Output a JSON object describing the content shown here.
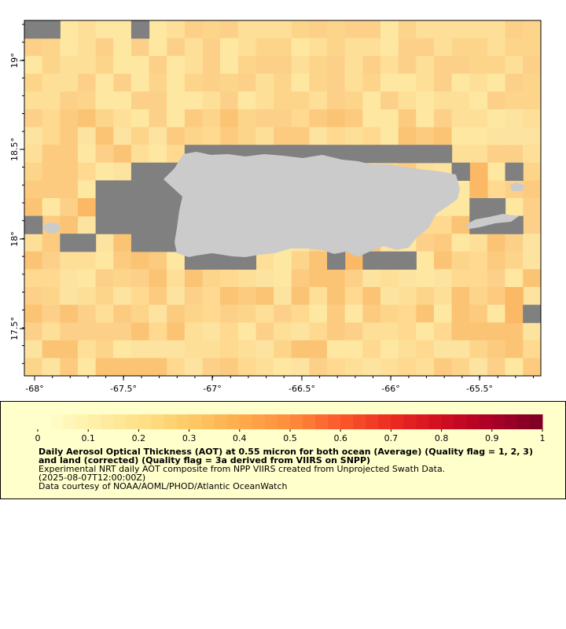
{
  "map": {
    "x_ticks": [
      "-68°",
      "-67.5°",
      "-67°",
      "-66.5°",
      "-66°",
      "-65.5°"
    ],
    "y_ticks": [
      "19°",
      "18.5°",
      "18°",
      "17.5°"
    ],
    "colors": {
      "no_data": "#808080",
      "land": "#cbcbcb",
      "background": "#ffffff"
    }
  },
  "legend": {
    "colorbar_ticks": [
      "0",
      "0.1",
      "0.2",
      "0.3",
      "0.4",
      "0.5",
      "0.6",
      "0.7",
      "0.8",
      "0.9",
      "1"
    ],
    "colorbar_colors": [
      "#ffffcc",
      "#fff0a8",
      "#fee087",
      "#fec965",
      "#feab4b",
      "#fd8d3c",
      "#fc5a2d",
      "#ec2e21",
      "#d30f20",
      "#b00026",
      "#800026"
    ],
    "title": "Daily Aerosol Optical Thickness (AOT) at 0.55 micron for both ocean (Average) (Quality flag = 1, 2, 3) and land (corrected) (Quality flag = 3a derived from VIIRS on SNPP)",
    "line1": "Experimental NRT daily AOT composite from NPP VIIRS created from Unprojected Swath Data.",
    "line2": "(2025-08-07T12:00:00Z)",
    "line3": "Data courtesy of NOAA/AOML/PHOD/Atlantic OceanWatch"
  }
}
